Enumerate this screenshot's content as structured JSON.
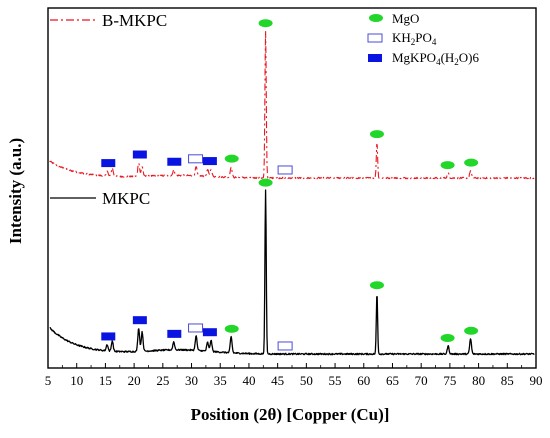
{
  "chart_data": {
    "type": "line",
    "xlabel": "Position (2θ) [Copper (Cu)]",
    "ylabel": "Intensity (a.u.)",
    "xlim": [
      5,
      90
    ],
    "xticks": [
      5,
      10,
      15,
      20,
      25,
      30,
      35,
      40,
      45,
      50,
      55,
      60,
      65,
      70,
      75,
      80,
      85,
      90
    ],
    "grid": false,
    "colors": {
      "B-MKPC": "#e8171f",
      "MKPC": "#000000",
      "MgO": "#22d62a",
      "KH2PO4": "#4b4bd8",
      "MgKPO4(H2O)6": "#0a14e0"
    },
    "legend": {
      "position": "top-right",
      "entries": [
        {
          "marker": "green-ellipse",
          "label": "MgO"
        },
        {
          "marker": "open-blue-rect",
          "parts": [
            "KH",
            "2",
            "PO",
            "4",
            ""
          ]
        },
        {
          "marker": "filled-blue-rect",
          "parts": [
            "MgKPO",
            "4",
            "(H",
            "2",
            "O)6"
          ]
        }
      ]
    },
    "series": [
      {
        "name": "B-MKPC",
        "style": "dash-dot",
        "peaks": [
          {
            "x": 15.3,
            "y": 0.3
          },
          {
            "x": 16.2,
            "y": 0.5
          },
          {
            "x": 20.8,
            "y": 0.85
          },
          {
            "x": 21.4,
            "y": 0.6
          },
          {
            "x": 26.9,
            "y": 0.35
          },
          {
            "x": 30.8,
            "y": 0.55
          },
          {
            "x": 32.8,
            "y": 0.4
          },
          {
            "x": 33.4,
            "y": 0.45
          },
          {
            "x": 36.9,
            "y": 0.65
          },
          {
            "x": 42.9,
            "y": 9.0
          },
          {
            "x": 62.3,
            "y": 2.2
          },
          {
            "x": 74.7,
            "y": 0.3
          },
          {
            "x": 78.6,
            "y": 0.45
          }
        ],
        "markers": [
          {
            "x": 15.5,
            "phase": "MgKPO4(H2O)6"
          },
          {
            "x": 21.0,
            "phase": "MgKPO4(H2O)6"
          },
          {
            "x": 27.0,
            "phase": "MgKPO4(H2O)6"
          },
          {
            "x": 30.7,
            "phase": "KH2PO4"
          },
          {
            "x": 33.2,
            "phase": "MgKPO4(H2O)6"
          },
          {
            "x": 37.0,
            "phase": "MgO"
          },
          {
            "x": 42.9,
            "phase": "MgO"
          },
          {
            "x": 46.3,
            "phase": "KH2PO4"
          },
          {
            "x": 62.3,
            "phase": "MgO"
          },
          {
            "x": 74.6,
            "phase": "MgO"
          },
          {
            "x": 78.7,
            "phase": "MgO"
          }
        ]
      },
      {
        "name": "MKPC",
        "style": "solid",
        "peaks": [
          {
            "x": 15.3,
            "y": 0.4
          },
          {
            "x": 16.2,
            "y": 0.65
          },
          {
            "x": 20.8,
            "y": 1.45
          },
          {
            "x": 21.4,
            "y": 1.2
          },
          {
            "x": 26.9,
            "y": 0.5
          },
          {
            "x": 30.8,
            "y": 0.9
          },
          {
            "x": 32.8,
            "y": 0.55
          },
          {
            "x": 33.4,
            "y": 0.7
          },
          {
            "x": 36.9,
            "y": 1.0
          },
          {
            "x": 42.9,
            "y": 10.2
          },
          {
            "x": 62.3,
            "y": 3.8
          },
          {
            "x": 74.7,
            "y": 0.5
          },
          {
            "x": 78.6,
            "y": 0.95
          }
        ],
        "markers": [
          {
            "x": 15.5,
            "phase": "MgKPO4(H2O)6"
          },
          {
            "x": 21.0,
            "phase": "MgKPO4(H2O)6"
          },
          {
            "x": 27.0,
            "phase": "MgKPO4(H2O)6"
          },
          {
            "x": 30.7,
            "phase": "KH2PO4"
          },
          {
            "x": 33.2,
            "phase": "MgKPO4(H2O)6"
          },
          {
            "x": 37.0,
            "phase": "MgO"
          },
          {
            "x": 42.9,
            "phase": "MgO"
          },
          {
            "x": 46.3,
            "phase": "KH2PO4"
          },
          {
            "x": 62.3,
            "phase": "MgO"
          },
          {
            "x": 74.6,
            "phase": "MgO"
          },
          {
            "x": 78.7,
            "phase": "MgO"
          }
        ]
      }
    ]
  }
}
